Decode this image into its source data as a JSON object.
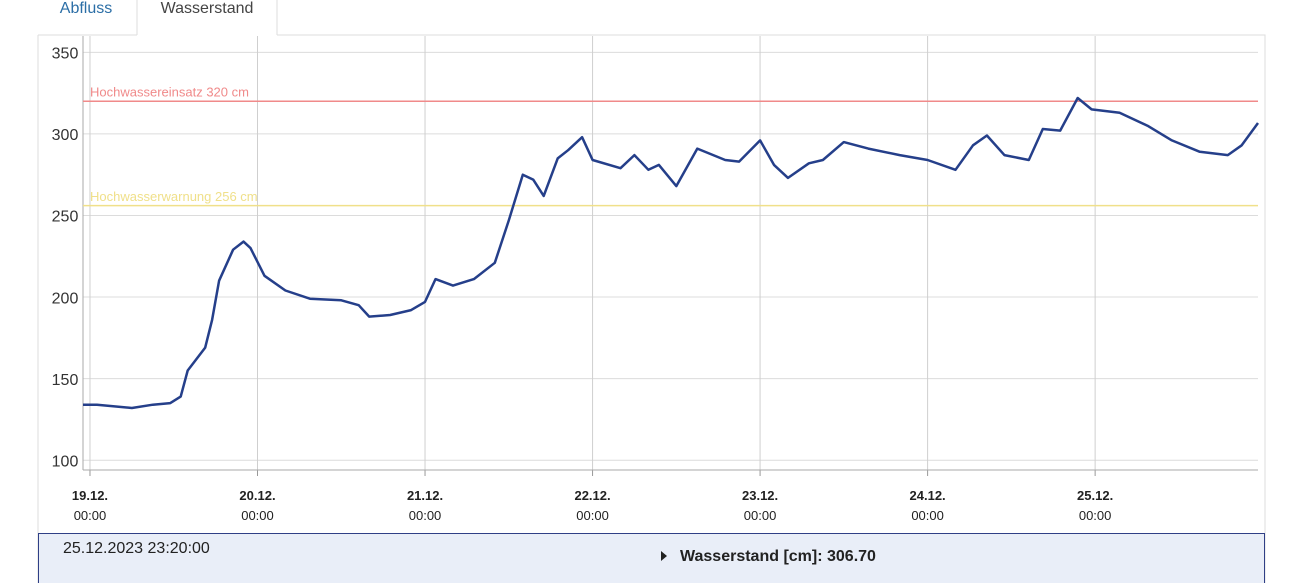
{
  "tabs": [
    "Abfluss",
    "Wasserstand"
  ],
  "chart_data": {
    "type": "line",
    "color": "#253f8a",
    "x": [
      "18.12. 23:00",
      "19.12. 01:00",
      "19.12. 06:00",
      "19.12. 09:00",
      "19.12. 11:30",
      "19.12. 13:00",
      "19.12. 14:00",
      "19.12. 16:30",
      "19.12. 17:30",
      "19.12. 18:30",
      "19.12. 20:30",
      "19.12. 22:00",
      "19.12. 23:00",
      "20.12. 01:00",
      "20.12. 04:00",
      "20.12. 07:30",
      "20.12. 12:00",
      "20.12. 14:30",
      "20.12. 16:00",
      "20.12. 19:00",
      "20.12. 22:00",
      "21.12. 00:00",
      "21.12. 01:30",
      "21.12. 04:00",
      "21.12. 07:00",
      "21.12. 10:00",
      "21.12. 12:00",
      "21.12. 14:00",
      "21.12. 15:30",
      "21.12. 17:00",
      "21.12. 19:00",
      "21.12. 20:30",
      "21.12. 22:30",
      "22.12. 00:00",
      "22.12. 04:00",
      "22.12. 06:00",
      "22.12. 08:00",
      "22.12. 09:30",
      "22.12. 12:00",
      "22.12. 15:00",
      "22.12. 19:00",
      "22.12. 21:00",
      "23.12. 00:00",
      "23.12. 02:00",
      "23.12. 04:00",
      "23.12. 07:00",
      "23.12. 09:00",
      "23.12. 12:00",
      "23.12. 15:30",
      "23.12. 20:00",
      "24.12. 00:00",
      "24.12. 04:00",
      "24.12. 06:30",
      "24.12. 08:30",
      "24.12. 11:00",
      "24.12. 14:30",
      "24.12. 16:30",
      "24.12. 19:00",
      "24.12. 21:30",
      "24.12. 23:30",
      "25.12. 03:30",
      "25.12. 07:30",
      "25.12. 11:00",
      "25.12. 15:00",
      "25.12. 19:00",
      "25.12. 21:00",
      "25.12. 23:20"
    ],
    "values": [
      134,
      134,
      132,
      134,
      135,
      139,
      155,
      169,
      186,
      210,
      229,
      234,
      230,
      213,
      204,
      199,
      198,
      195,
      188,
      189,
      192,
      197,
      211,
      207,
      211,
      221,
      247,
      275,
      272,
      262,
      285,
      290,
      298,
      284,
      279,
      287,
      278,
      281,
      268,
      291,
      284,
      283,
      296,
      281,
      273,
      282,
      284,
      295,
      291,
      287,
      284,
      278,
      293,
      299,
      287,
      284,
      303,
      302,
      322,
      315,
      313,
      305,
      296,
      289,
      287,
      293,
      306.7
    ],
    "xlim": [
      "18.12. 23:00",
      "25.12. 23:20"
    ],
    "xticks": [
      "19.12. 00:00",
      "20.12. 00:00",
      "21.12. 00:00",
      "22.12. 00:00",
      "23.12. 00:00",
      "24.12. 00:00",
      "25.12. 00:00"
    ],
    "ylim": [
      94,
      360
    ],
    "yticks": [
      100,
      150,
      200,
      250,
      300,
      350
    ],
    "grid": true,
    "annotations": [
      {
        "text": "Hochwassereinsatz 320 cm",
        "value": 320,
        "color": "#f08a8a"
      },
      {
        "text": "Hochwasserwarnung 256 cm",
        "value": 256,
        "color": "#f0e08a"
      }
    ]
  },
  "info": {
    "timestamp": "25.12.2023 23:20:00",
    "label": "Wasserstand [cm]: 306.70"
  }
}
